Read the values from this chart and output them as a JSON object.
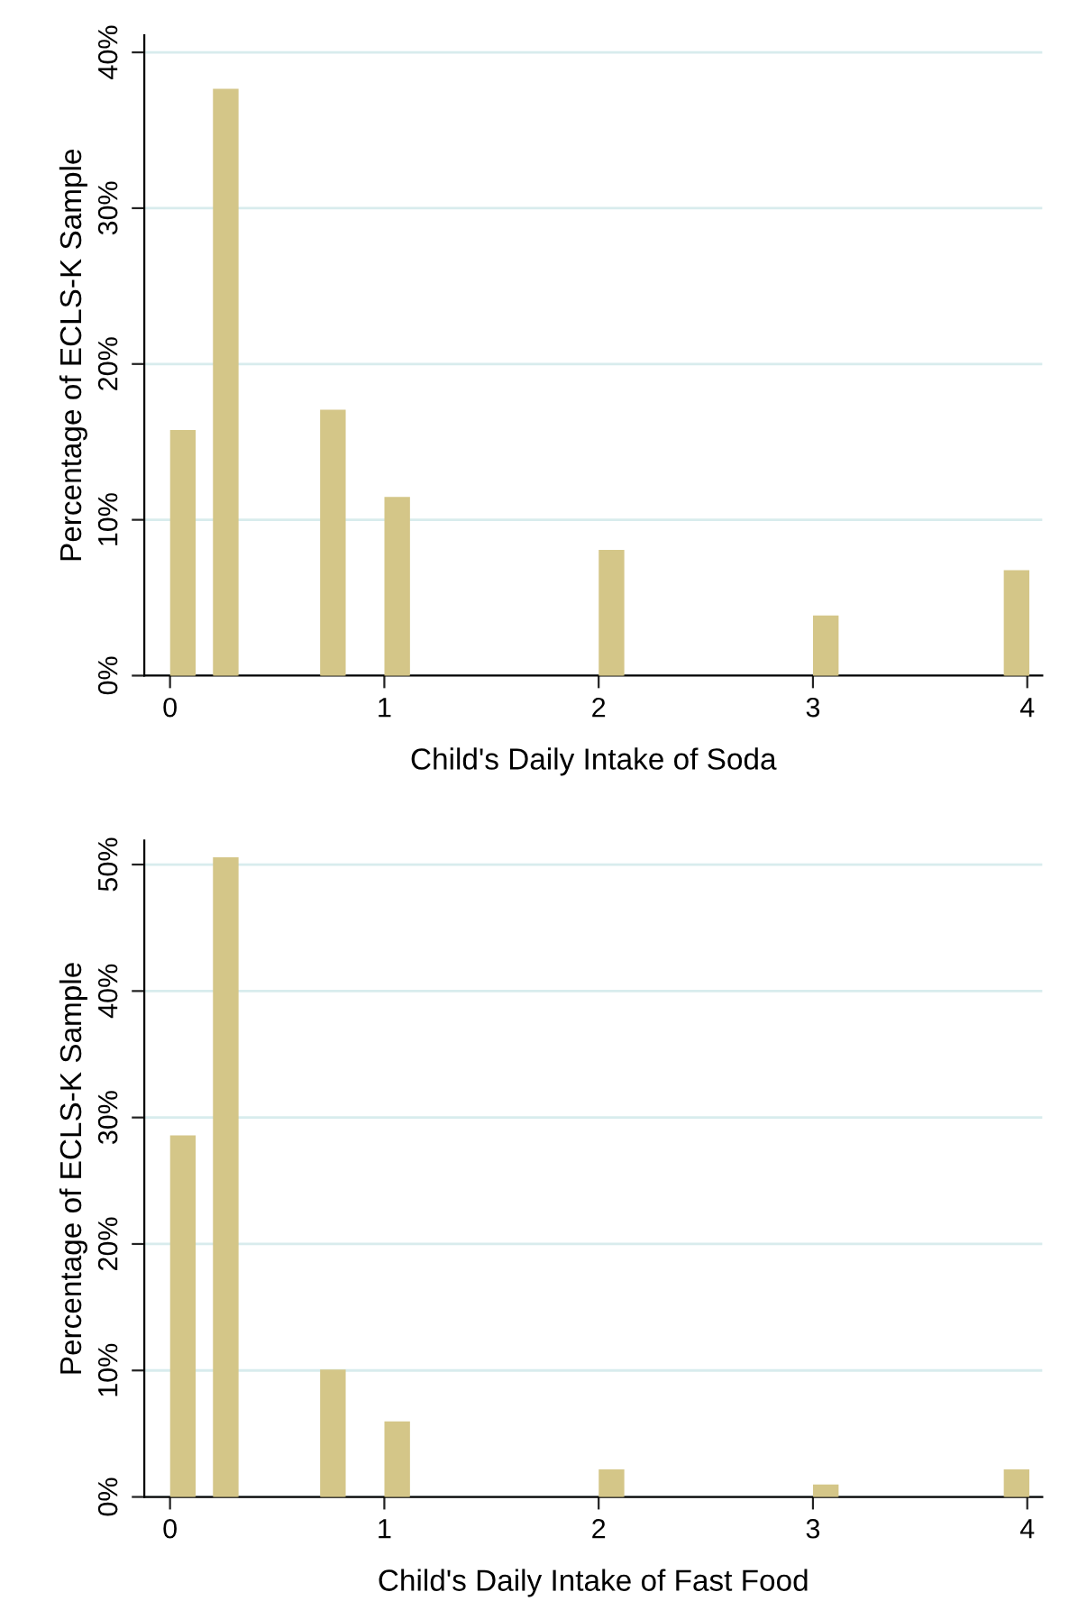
{
  "chart_data": [
    {
      "type": "bar",
      "xlabel": "Child's Daily Intake of Soda",
      "ylabel": "Percentage of ECLS-K Sample",
      "x": [
        0.06,
        0.26,
        0.76,
        1.06,
        2.06,
        3.06,
        3.95
      ],
      "series": [
        {
          "color": "#d4c688",
          "values": [
            15.7,
            37.6,
            17.0,
            11.4,
            8.0,
            3.8,
            6.7
          ]
        }
      ],
      "xlim": [
        -0.12,
        4.07
      ],
      "xticks": [
        0,
        1,
        2,
        3,
        4
      ],
      "ylim": [
        0,
        41.1
      ],
      "yticks": [
        {
          "value": 0,
          "label": "0%"
        },
        {
          "value": 10,
          "label": "10%"
        },
        {
          "value": 20,
          "label": "20%"
        },
        {
          "value": 30,
          "label": "30%"
        },
        {
          "value": 40,
          "label": "40%"
        }
      ],
      "grid": "y"
    },
    {
      "type": "bar",
      "xlabel": "Child's Daily Intake of Fast Food",
      "ylabel": "Percentage of ECLS-K Sample",
      "x": [
        0.06,
        0.26,
        0.76,
        1.06,
        2.06,
        3.06,
        3.95
      ],
      "series": [
        {
          "color": "#d4c688",
          "values": [
            28.5,
            50.5,
            10.0,
            5.9,
            2.1,
            0.9,
            2.1
          ]
        }
      ],
      "xlim": [
        -0.12,
        4.07
      ],
      "xticks": [
        0,
        1,
        2,
        3,
        4
      ],
      "ylim": [
        0,
        51.9
      ],
      "yticks": [
        {
          "value": 0,
          "label": "0%"
        },
        {
          "value": 10,
          "label": "10%"
        },
        {
          "value": 20,
          "label": "20%"
        },
        {
          "value": 30,
          "label": "30%"
        },
        {
          "value": 40,
          "label": "40%"
        },
        {
          "value": 50,
          "label": "50%"
        }
      ],
      "grid": "y"
    }
  ]
}
